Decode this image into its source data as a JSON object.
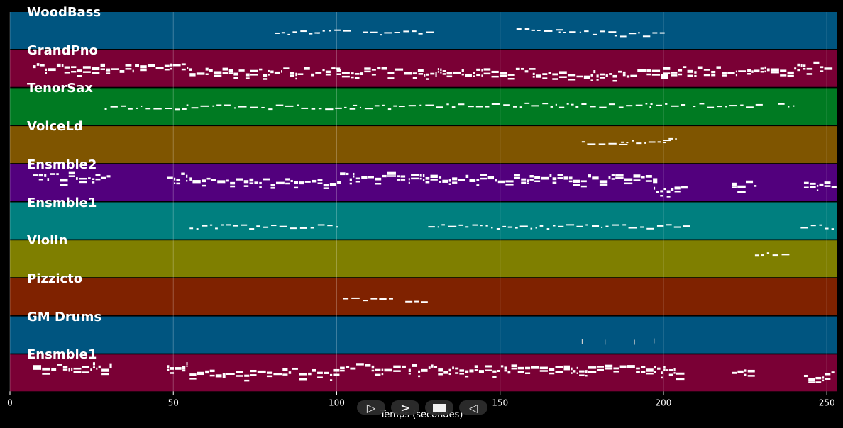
{
  "tracks": [
    {
      "name": "WoodBass",
      "color": "#005580"
    },
    {
      "name": "GrandPno",
      "color": "#7a0035"
    },
    {
      "name": "TenorSax",
      "color": "#007a22"
    },
    {
      "name": "VoiceLd",
      "color": "#7f5500"
    },
    {
      "name": "Ensmble2",
      "color": "#52007d"
    },
    {
      "name": "Ensmble1",
      "color": "#007f7f"
    },
    {
      "name": "Violin",
      "color": "#7f7f00"
    },
    {
      "name": "Pizzicto",
      "color": "#7f2200"
    },
    {
      "name": "GM Drums",
      "color": "#005580"
    },
    {
      "name": "Ensmble1",
      "color": "#7a0035"
    }
  ],
  "axis": {
    "title": "Temps (secondes)",
    "min": 0,
    "max": 253,
    "ticks": [
      0,
      50,
      100,
      150,
      200,
      250
    ]
  },
  "transport": {
    "play_icon": "play-icon",
    "forward_icon": "forward-icon",
    "stop_icon": "stop-icon",
    "rewind_icon": "rewind-icon"
  },
  "note_segments": {
    "WoodBass": [
      [
        81,
        94,
        0.55
      ],
      [
        94,
        105,
        0.5
      ],
      [
        108,
        128,
        0.55
      ],
      [
        155,
        168,
        0.45
      ],
      [
        168,
        185,
        0.55
      ],
      [
        185,
        200,
        0.6
      ]
    ],
    "GrandPno": [
      [
        7,
        55,
        0.45
      ],
      [
        55,
        100,
        0.55
      ],
      [
        100,
        125,
        0.55
      ],
      [
        125,
        160,
        0.55
      ],
      [
        160,
        200,
        0.6
      ],
      [
        200,
        240,
        0.5
      ],
      [
        240,
        252,
        0.4
      ]
    ],
    "TenorSax": [
      [
        29,
        53,
        0.5
      ],
      [
        54,
        105,
        0.5
      ],
      [
        105,
        120,
        0.5
      ],
      [
        122,
        196,
        0.45
      ],
      [
        196,
        207,
        0.45
      ],
      [
        209,
        230,
        0.45
      ],
      [
        235,
        240,
        0.45
      ]
    ],
    "VoiceLd": [
      [
        175,
        187,
        0.45
      ],
      [
        187,
        200,
        0.4
      ],
      [
        200,
        205,
        0.38
      ]
    ],
    "Ensmble2": [
      [
        7,
        31,
        0.3
      ],
      [
        48,
        54,
        0.3
      ],
      [
        55,
        101,
        0.45
      ],
      [
        101,
        121,
        0.3
      ],
      [
        122,
        197,
        0.35
      ],
      [
        197,
        206,
        0.65
      ],
      [
        221,
        228,
        0.5
      ],
      [
        243,
        252,
        0.55
      ]
    ],
    "Ensmble1a": [
      [
        55,
        101,
        0.65
      ],
      [
        128,
        207,
        0.65
      ],
      [
        242,
        252,
        0.65
      ]
    ],
    "Violin": [
      [
        228,
        238,
        0.35
      ]
    ],
    "Pizzicto": [
      [
        102,
        111,
        0.55
      ],
      [
        113,
        118,
        0.55
      ],
      [
        121,
        127,
        0.6
      ]
    ],
    "GM Drums": [
      [
        175,
        176,
        0.65
      ],
      [
        182,
        183,
        0.65
      ],
      [
        191,
        192,
        0.65
      ],
      [
        197,
        198,
        0.65
      ]
    ],
    "Ensmble1b": [
      [
        7,
        31,
        0.3
      ],
      [
        48,
        54,
        0.3
      ],
      [
        55,
        101,
        0.45
      ],
      [
        101,
        121,
        0.3
      ],
      [
        122,
        197,
        0.35
      ],
      [
        197,
        206,
        0.4
      ],
      [
        221,
        228,
        0.5
      ],
      [
        243,
        252,
        0.55
      ]
    ]
  }
}
